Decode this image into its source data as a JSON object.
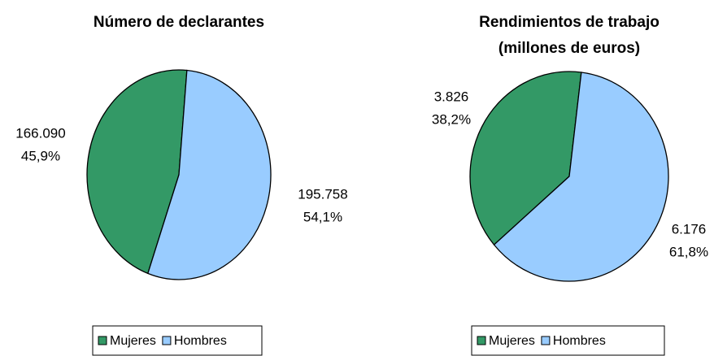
{
  "chart_data": [
    {
      "type": "pie",
      "title": [
        "Número de declarantes"
      ],
      "categories": [
        "Mujeres",
        "Hombres"
      ],
      "colors": [
        "#339966",
        "#99ccff"
      ],
      "values": [
        166090,
        195758
      ],
      "value_labels": [
        "166.090",
        "195.758"
      ],
      "percent_labels": [
        "45,9%",
        "54,1%"
      ],
      "legend": "bottom"
    },
    {
      "type": "pie",
      "title": [
        "Rendimientos de trabajo",
        "(millones de euros)"
      ],
      "categories": [
        "Mujeres",
        "Hombres"
      ],
      "colors": [
        "#339966",
        "#99ccff"
      ],
      "values": [
        3826,
        6176
      ],
      "value_labels": [
        "3.826",
        "6.176"
      ],
      "percent_labels": [
        "38,2%",
        "61,8%"
      ],
      "legend": "bottom"
    }
  ]
}
